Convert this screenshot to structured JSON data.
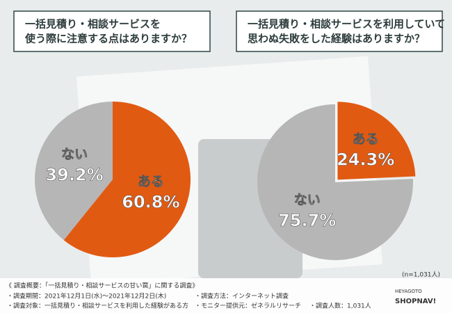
{
  "chart_data": [
    {
      "type": "pie",
      "title": [
        "一括見積り・相談サービスを",
        "使う際に注意する点はありますか？"
      ],
      "categories": [
        "ある",
        "ない"
      ],
      "values": [
        60.8,
        39.2
      ],
      "value_labels": [
        "60.8%",
        "39.2%"
      ],
      "colors": [
        "#e15a12",
        "#b6b6b6"
      ]
    },
    {
      "type": "pie",
      "title": [
        "一括見積り・相談サービスを利用していて",
        "思わぬ失敗をした経験はありますか？"
      ],
      "categories": [
        "ある",
        "ない"
      ],
      "values": [
        24.3,
        75.7
      ],
      "value_labels": [
        "24.3%",
        "75.7%"
      ],
      "colors": [
        "#e15a12",
        "#b6b6b6"
      ]
    }
  ],
  "footer": {
    "heading": "《 調査概要：「一括見積り・相談サービスの甘い罠」に関する調査》",
    "items": [
      "・調査期間：2021年12月1日(水)～2021年12月2日(木)",
      "・調査方法：インターネット調査",
      "・調査対象：一括見積り・相談サービスを利用した経験がある方",
      "・モニター提供元：ゼネラルリサーチ",
      "・調査人数：1,031人"
    ],
    "sample": "(n=1,031人)"
  },
  "logo": {
    "top": "HEYAGOTO",
    "bottom": "SHOPNAV!"
  }
}
